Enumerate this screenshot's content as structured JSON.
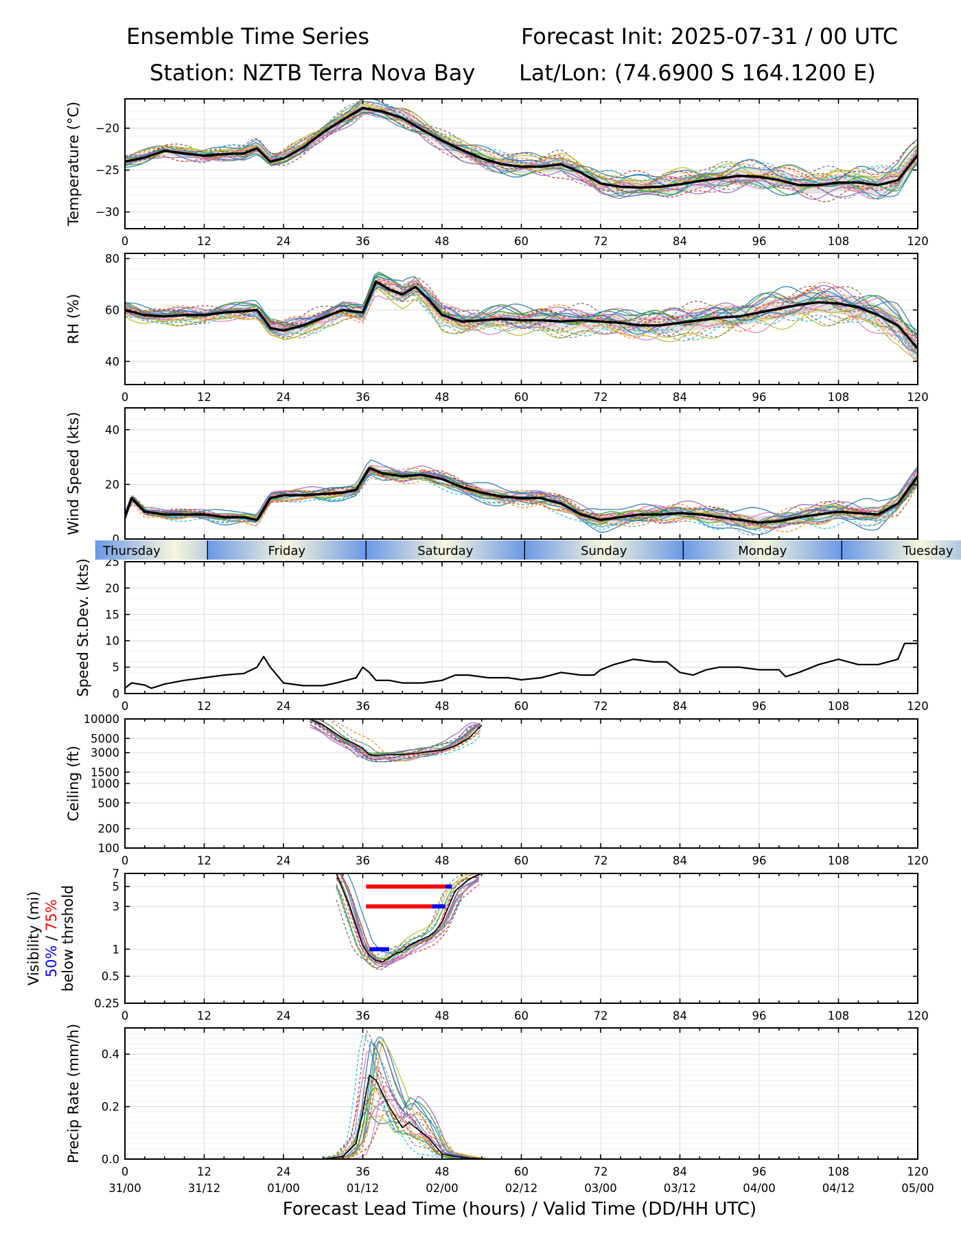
{
  "header": {
    "title_left": "Ensemble Time Series",
    "title_right": "Forecast Init: 2025-07-31 / 00 UTC",
    "station": "Station: NZTB Terra Nova Bay",
    "latlon": "Lat/Lon: (74.6900 S 164.1200 E)"
  },
  "colors": {
    "ensemble_mean": "#000000",
    "spread_band": "#d9d9d9",
    "vis_50pct": "#0000ff",
    "vis_75pct": "#ff0000",
    "day_band_dark": "#6b98e6",
    "day_band_light": "#f6f6dc",
    "member_palette": [
      "#1f77b4",
      "#ff7f0e",
      "#2ca02c",
      "#d62728",
      "#9467bd",
      "#8c564b",
      "#e377c2",
      "#7f7f7f",
      "#bcbd22",
      "#17becf"
    ]
  },
  "day_labels": [
    "Thursday",
    "Friday",
    "Saturday",
    "Sunday",
    "Monday",
    "Tuesday"
  ],
  "x_axis": {
    "label": "Forecast Lead Time (hours) / Valid Time (DD/HH UTC)",
    "lead_ticks": [
      "0",
      "12",
      "24",
      "36",
      "48",
      "60",
      "72",
      "84",
      "96",
      "108",
      "120"
    ],
    "valid_ticks": [
      "31/00",
      "31/12",
      "01/00",
      "01/12",
      "02/00",
      "02/12",
      "03/00",
      "03/12",
      "04/00",
      "04/12",
      "05/00"
    ],
    "range": [
      0,
      120
    ]
  },
  "chart_data": [
    {
      "type": "line",
      "ylabel": "Temperature (°C)",
      "ylim": [
        -32,
        -16.5
      ],
      "yticks": [
        "-20",
        "-25",
        "-30"
      ],
      "ytick_values": [
        -20,
        -25,
        -30
      ],
      "grid": true,
      "series": [
        {
          "name": "",
          "x": [
            0,
            3,
            6,
            9,
            12,
            15,
            18,
            20,
            22,
            24,
            27,
            30,
            33,
            36,
            39,
            42,
            45,
            48,
            51,
            54,
            57,
            60,
            63,
            66,
            69,
            72,
            75,
            78,
            81,
            84,
            87,
            90,
            93,
            96,
            99,
            102,
            105,
            108,
            111,
            114,
            117,
            120
          ],
          "values": [
            -24,
            -23.5,
            -22.7,
            -23,
            -23.3,
            -23.1,
            -23,
            -22.4,
            -24,
            -23.6,
            -22.3,
            -20.5,
            -19,
            -17.6,
            -18,
            -18.8,
            -20.2,
            -21.5,
            -22.6,
            -23.6,
            -24.3,
            -24.6,
            -24.6,
            -24.3,
            -25.3,
            -26.6,
            -27,
            -27.1,
            -27,
            -26.7,
            -26.3,
            -26,
            -25.7,
            -25.8,
            -26.2,
            -26.8,
            -26.8,
            -26.5,
            -26.5,
            -26.8,
            -26.2,
            -23.2
          ]
        }
      ]
    },
    {
      "type": "line",
      "ylabel": "RH (%)",
      "ylim": [
        31,
        82
      ],
      "yticks": [
        "80",
        "60",
        "40"
      ],
      "ytick_values": [
        80,
        60,
        40
      ],
      "grid": true,
      "series": [
        {
          "name": "",
          "x": [
            0,
            3,
            6,
            9,
            12,
            15,
            18,
            20,
            22,
            24,
            27,
            30,
            33,
            36,
            38,
            40,
            42,
            44,
            46,
            48,
            51,
            54,
            57,
            60,
            63,
            66,
            69,
            72,
            75,
            78,
            81,
            84,
            87,
            90,
            93,
            96,
            99,
            102,
            105,
            108,
            111,
            114,
            117,
            120
          ],
          "values": [
            60,
            58,
            57.5,
            58,
            58,
            59,
            59.5,
            60,
            53,
            52,
            54,
            57,
            60,
            59,
            71,
            68,
            66,
            69,
            64,
            58,
            55.5,
            56,
            56.5,
            56,
            56,
            55.5,
            56,
            55.5,
            55,
            54,
            54,
            55,
            56,
            57,
            57.5,
            59,
            60.5,
            62,
            63,
            62.5,
            61,
            58,
            54,
            45
          ]
        }
      ]
    },
    {
      "type": "line",
      "ylabel": "Wind Speed (kts)",
      "ylim": [
        0,
        48
      ],
      "yticks": [
        "40",
        "20",
        "0"
      ],
      "ytick_values": [
        40,
        20,
        0
      ],
      "grid": true,
      "series": [
        {
          "name": "",
          "x": [
            0,
            1,
            3,
            6,
            9,
            12,
            15,
            18,
            20,
            22,
            24,
            27,
            30,
            33,
            35,
            36,
            37,
            39,
            42,
            45,
            48,
            51,
            54,
            57,
            60,
            63,
            66,
            69,
            72,
            75,
            78,
            81,
            84,
            87,
            90,
            93,
            96,
            99,
            102,
            105,
            108,
            111,
            114,
            117,
            120
          ],
          "values": [
            8,
            15,
            10,
            9,
            9,
            9,
            8,
            8,
            7,
            15,
            16,
            16,
            16.5,
            17,
            18,
            22,
            26,
            24,
            23,
            23.5,
            22,
            19,
            17,
            15.5,
            15,
            15,
            13,
            9,
            7,
            8,
            9,
            9,
            9.5,
            9,
            8,
            7,
            6,
            6.5,
            8,
            9,
            10,
            9.5,
            9,
            13,
            23
          ]
        }
      ]
    },
    {
      "type": "line",
      "ylabel": "Speed St.Dev. (kts)",
      "ylim": [
        0,
        25
      ],
      "yticks": [
        "25",
        "20",
        "15",
        "10",
        "5",
        "0"
      ],
      "ytick_values": [
        25,
        20,
        15,
        10,
        5,
        0
      ],
      "grid": true,
      "series": [
        {
          "name": "",
          "x": [
            0,
            1,
            3,
            4,
            6,
            9,
            12,
            15,
            18,
            20,
            21,
            22,
            24,
            27,
            30,
            32,
            35,
            36,
            37,
            38,
            40,
            42,
            45,
            48,
            50,
            52,
            55,
            58,
            60,
            63,
            66,
            69,
            71,
            72,
            74,
            77,
            80,
            82,
            84,
            86,
            88,
            90,
            93,
            96,
            99,
            100,
            102,
            105,
            108,
            111,
            114,
            117,
            118,
            120
          ],
          "values": [
            1,
            2,
            1.6,
            1,
            1.8,
            2.5,
            3,
            3.5,
            3.8,
            5,
            7,
            5,
            2,
            1.5,
            1.5,
            2,
            3,
            5,
            4,
            2.5,
            2.5,
            2,
            2,
            2.5,
            3.5,
            3.5,
            3,
            3,
            2.6,
            3,
            4,
            3.5,
            3.5,
            4.5,
            5.5,
            6.5,
            6,
            6,
            4,
            3.5,
            4.5,
            5,
            5,
            4.5,
            4.5,
            3.2,
            4,
            5.5,
            6.5,
            5.5,
            5.5,
            6.5,
            9.5,
            9.5
          ]
        }
      ]
    },
    {
      "type": "line",
      "ylabel": "Ceiling (ft)",
      "yscale": "log",
      "ylim": [
        100,
        10000
      ],
      "yticks": [
        "10000",
        "5000",
        "3000",
        "1500",
        "1000",
        "500",
        "200",
        "100"
      ],
      "ytick_values": [
        10000,
        5000,
        3000,
        1500,
        1000,
        500,
        200,
        100
      ],
      "grid": true,
      "series": [
        {
          "name": "",
          "x": [
            28,
            30,
            33,
            35,
            36,
            37,
            38,
            40,
            42,
            44,
            46,
            48,
            50,
            52,
            54
          ],
          "values": [
            10000,
            8000,
            5000,
            4000,
            3500,
            2800,
            2700,
            2800,
            2800,
            2900,
            3100,
            3300,
            3800,
            5000,
            8000
          ]
        }
      ]
    },
    {
      "type": "line",
      "ylabel": "Visibility (mi)",
      "ylabel_blue": "50%",
      "ylabel_sep": " / ",
      "ylabel_red": "75%",
      "ylabel_sub": "below thrshold",
      "yscale": "log",
      "ylim": [
        0.25,
        7
      ],
      "yticks": [
        "7",
        "5",
        "3",
        "1",
        "0.5",
        "0.25"
      ],
      "ytick_values": [
        7,
        5,
        3,
        1,
        0.5,
        0.25
      ],
      "grid": true,
      "series": [
        {
          "name": "",
          "x": [
            32,
            34,
            35,
            36,
            37,
            38,
            39,
            40,
            41,
            42,
            43,
            44,
            45,
            46,
            47,
            48,
            49,
            50,
            52,
            54
          ],
          "values": [
            7,
            3,
            1.8,
            1.1,
            0.85,
            0.75,
            0.72,
            0.8,
            0.9,
            0.95,
            1.1,
            1.2,
            1.3,
            1.4,
            1.6,
            2,
            3,
            4.5,
            6,
            7
          ]
        }
      ],
      "threshold_bars": [
        {
          "threshold": 5,
          "pct75": [
            36.5,
            48.5
          ],
          "pct50": [
            48.5,
            49.5
          ]
        },
        {
          "threshold": 3,
          "pct75": [
            36.5,
            46.5
          ],
          "pct50": [
            46.5,
            48.5
          ]
        },
        {
          "threshold": 1,
          "pct50": [
            37,
            40
          ]
        }
      ]
    },
    {
      "type": "line",
      "ylabel": "Precip Rate (mm/h)",
      "ylim": [
        0,
        0.5
      ],
      "yticks": [
        "0.4",
        "0.2",
        "0.0"
      ],
      "ytick_values": [
        0.4,
        0.2,
        0.0
      ],
      "grid": true,
      "series": [
        {
          "name": "",
          "x": [
            30,
            33,
            35,
            36,
            37,
            38,
            39,
            40,
            41,
            42,
            43,
            44,
            45,
            46,
            47,
            48,
            50,
            52,
            55
          ],
          "values": [
            0,
            0.01,
            0.06,
            0.18,
            0.32,
            0.3,
            0.25,
            0.2,
            0.16,
            0.12,
            0.14,
            0.12,
            0.1,
            0.08,
            0.05,
            0.02,
            0.01,
            0.004,
            0
          ]
        }
      ]
    }
  ]
}
